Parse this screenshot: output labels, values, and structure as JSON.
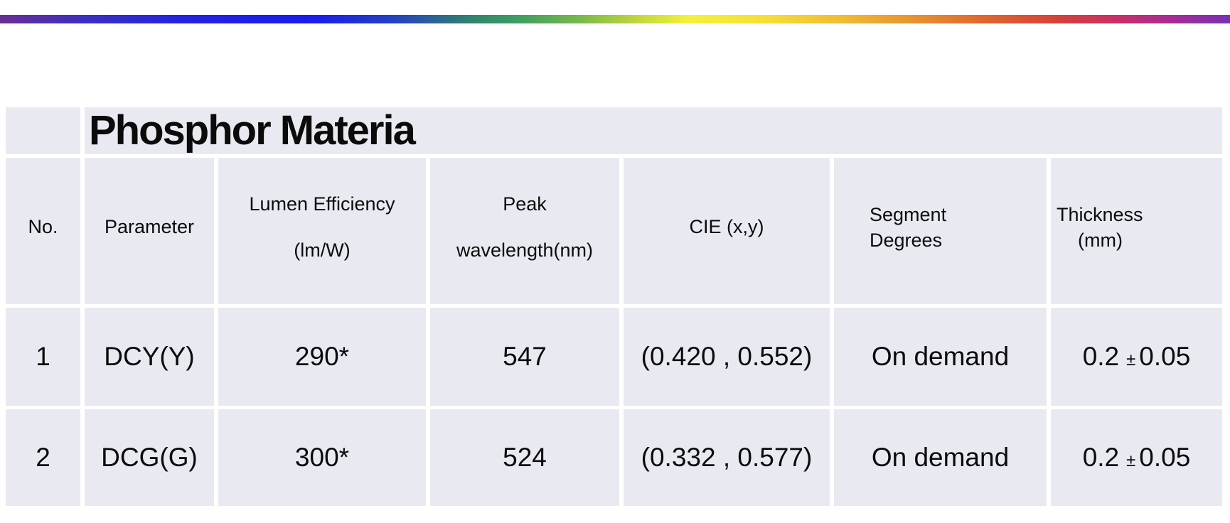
{
  "page": {
    "background": "#FFFFFF"
  },
  "accent_bar": {
    "stops": [
      "#6B2E95 0%",
      "#3B2FC2 7%",
      "#2323E2 15%",
      "#1B1BF0 25%",
      "#2440C4 32%",
      "#2F8170 38%",
      "#3C9E63 42%",
      "#76B84A 47%",
      "#C3D83E 52%",
      "#F4F13B 56%",
      "#F6DF37 62%",
      "#F1BE34 68%",
      "#E89430 74%",
      "#DF672D 80%",
      "#D74138 86%",
      "#CA2E68 91%",
      "#A92C95 95%",
      "#7B2FB5 100%"
    ]
  },
  "table": {
    "title": "Phosphor Materia",
    "cell_background": "#E9EAF1",
    "text_color": "#0B0B0B",
    "header": {
      "no": "No.",
      "parameter": "Parameter",
      "lumen_line1": "Lumen Efficiency",
      "lumen_line2": "(lm/W)",
      "peak_line1": "Peak",
      "peak_line2": "wavelength(nm)",
      "cie": "CIE (x,y)",
      "segment_line1": "Segment",
      "segment_line2": "Degrees",
      "thickness_line1": "Thickness",
      "thickness_line2": "(mm)"
    },
    "rows": [
      {
        "no": "1",
        "parameter": "DCY(Y)",
        "lumen_efficiency": "290*",
        "peak_wavelength": "547",
        "cie": "(0.420 , 0.552)",
        "segment_degrees": "On demand",
        "thickness_value": "0.2",
        "thickness_pm": "±",
        "thickness_tolerance": "0.05"
      },
      {
        "no": "2",
        "parameter": "DCG(G)",
        "lumen_efficiency": "300*",
        "peak_wavelength": "524",
        "cie": "(0.332 , 0.577)",
        "segment_degrees": "On demand",
        "thickness_value": "0.2",
        "thickness_pm": "±",
        "thickness_tolerance": "0.05"
      }
    ]
  },
  "chart_data": {
    "type": "table",
    "title": "Phosphor Materia",
    "columns": [
      "No.",
      "Parameter",
      "Lumen Efficiency (lm/W)",
      "Peak wavelength(nm)",
      "CIE (x,y)",
      "Segment Degrees",
      "Thickness (mm)"
    ],
    "rows": [
      [
        "1",
        "DCY(Y)",
        "290*",
        "547",
        "(0.420 , 0.552)",
        "On demand",
        "0.2 ± 0.05"
      ],
      [
        "2",
        "DCG(G)",
        "300*",
        "524",
        "(0.332 , 0.577)",
        "On demand",
        "0.2 ± 0.05"
      ]
    ]
  }
}
